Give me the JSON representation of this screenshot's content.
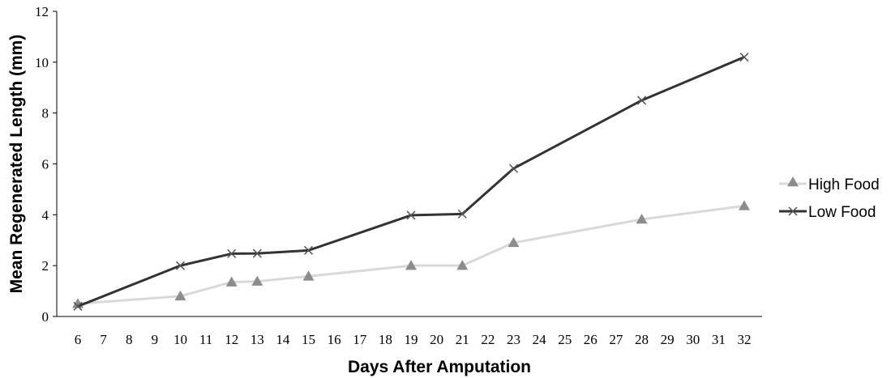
{
  "chart_data": {
    "type": "line",
    "title": "",
    "xlabel": "Days After Amputation",
    "ylabel": "Mean Regenerated Length (mm)",
    "x_ticks": [
      "6",
      "7",
      "8",
      "9",
      "10",
      "11",
      "12",
      "13",
      "14",
      "15",
      "16",
      "17",
      "18",
      "19",
      "20",
      "21",
      "22",
      "23",
      "24",
      "25",
      "26",
      "27",
      "28",
      "29",
      "30",
      "31",
      "32"
    ],
    "y_ticks": [
      "0",
      "2",
      "4",
      "6",
      "8",
      "10",
      "12"
    ],
    "ylim": [
      0,
      12
    ],
    "grid": false,
    "legend_position": "right",
    "series": [
      {
        "name": "High Food",
        "color": "#d9d9d9",
        "marker": "triangle",
        "marker_color": "#8c8c8c",
        "x": [
          6,
          10,
          12,
          13,
          15,
          19,
          21,
          23,
          28,
          32
        ],
        "y": [
          0.5,
          0.8,
          1.35,
          1.38,
          1.58,
          2.0,
          2.0,
          2.9,
          3.82,
          4.35
        ]
      },
      {
        "name": "Low Food",
        "color": "#333333",
        "marker": "x",
        "marker_color": "#555555",
        "x": [
          6,
          10,
          12,
          13,
          15,
          19,
          21,
          23,
          28,
          32
        ],
        "y": [
          0.4,
          2.0,
          2.47,
          2.48,
          2.6,
          3.98,
          4.03,
          5.82,
          8.5,
          10.2
        ]
      }
    ]
  }
}
